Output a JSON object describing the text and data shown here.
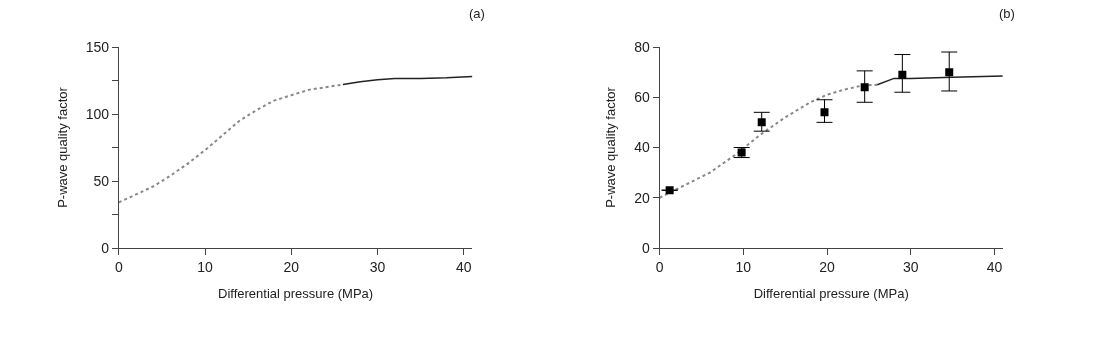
{
  "chart_data": [
    {
      "type": "line",
      "xlabel": "Differential pressure (MPa)",
      "ylabel": "P-wave quality factor",
      "annotations": [
        "(a)"
      ],
      "xlim": [
        0,
        41
      ],
      "xticks": [
        0,
        10,
        20,
        30,
        40
      ],
      "ylim": [
        0,
        150
      ],
      "yticks": [
        0,
        {
          "value": 25,
          "label": null
        },
        50,
        {
          "value": 75,
          "label": null
        },
        100,
        {
          "value": 125,
          "label": null
        },
        150
      ],
      "series": [
        {
          "color": "#888888",
          "line_style": "dotted",
          "marker": "none",
          "x": [
            0,
            2,
            4,
            6,
            8,
            10,
            12,
            14,
            16,
            18,
            20,
            22,
            24,
            26
          ],
          "values": [
            34,
            40,
            46,
            54,
            63,
            73,
            84,
            95,
            103,
            110,
            114,
            118,
            120,
            122
          ]
        },
        {
          "color": "#222222",
          "line_style": "solid",
          "marker": "none",
          "x": [
            26,
            28,
            30,
            32,
            35,
            38,
            41
          ],
          "values": [
            122,
            124,
            125.5,
            126.5,
            126.5,
            127,
            128
          ]
        }
      ]
    },
    {
      "type": "line",
      "xlabel": "Differential pressure (MPa)",
      "ylabel": "P-wave quality factor",
      "annotations": [
        "(b)"
      ],
      "xlim": [
        0,
        41
      ],
      "xticks": [
        0,
        10,
        20,
        30,
        40
      ],
      "ylim": [
        0,
        80
      ],
      "yticks": [
        0,
        20,
        40,
        60,
        80
      ],
      "series": [
        {
          "color": "#888888",
          "line_style": "dotted",
          "marker": "none",
          "x": [
            0,
            3,
            6,
            9,
            12,
            15,
            18,
            20,
            22,
            24,
            26
          ],
          "values": [
            20,
            25,
            30,
            37,
            45,
            52,
            58,
            61,
            63,
            64.5,
            65
          ]
        },
        {
          "color": "#222222",
          "line_style": "solid",
          "marker": "none",
          "x": [
            26,
            28,
            30,
            35,
            41
          ],
          "values": [
            65,
            67.5,
            67.5,
            68,
            68.5
          ]
        },
        {
          "type": "scatter",
          "color": "#000000",
          "marker": "square",
          "x": [
            1.2,
            9.8,
            12.2,
            19.7,
            24.5,
            29,
            34.6
          ],
          "values": [
            23,
            38,
            50,
            54,
            64,
            69,
            70
          ],
          "errors": [
            null,
            [
              36,
              40
            ],
            [
              46.5,
              54
            ],
            [
              50,
              59
            ],
            [
              58,
              70.5
            ],
            [
              62,
              77
            ],
            [
              62.5,
              78
            ]
          ]
        }
      ]
    }
  ]
}
